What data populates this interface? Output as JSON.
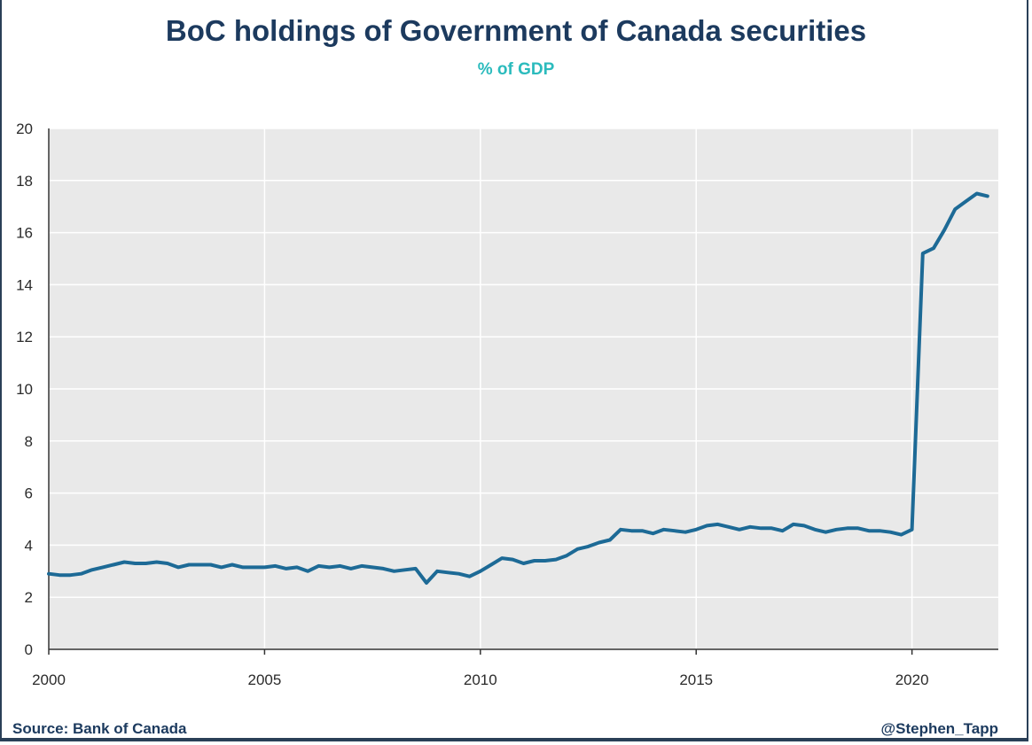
{
  "title": "BoC holdings of Government of Canada securities",
  "subtitle": "% of GDP",
  "source": "Source: Bank of Canada",
  "credit": "@Stephen_Tapp",
  "colors": {
    "line": "#1d6a96",
    "plot_bg": "#e9e9e9",
    "grid": "#ffffff",
    "title": "#1c3a5e",
    "subtitle": "#2bbbbd"
  },
  "chart_data": {
    "type": "line",
    "title": "BoC holdings of Government of Canada securities",
    "subtitle": "% of GDP",
    "xlabel": "",
    "ylabel": "",
    "xlim": [
      2000,
      2022
    ],
    "ylim": [
      0,
      20
    ],
    "x_ticks": [
      "2000",
      "2005",
      "2010",
      "2015",
      "2020"
    ],
    "y_ticks": [
      "0",
      "2",
      "4",
      "6",
      "8",
      "10",
      "12",
      "14",
      "16",
      "18",
      "20"
    ],
    "grid": true,
    "legend": "none",
    "series": [
      {
        "x": [
          2000.0,
          2000.25,
          2000.5,
          2000.75,
          2001.0,
          2001.25,
          2001.5,
          2001.75,
          2002.0,
          2002.25,
          2002.5,
          2002.75,
          2003.0,
          2003.25,
          2003.5,
          2003.75,
          2004.0,
          2004.25,
          2004.5,
          2004.75,
          2005.0,
          2005.25,
          2005.5,
          2005.75,
          2006.0,
          2006.25,
          2006.5,
          2006.75,
          2007.0,
          2007.25,
          2007.5,
          2007.75,
          2008.0,
          2008.25,
          2008.5,
          2008.75,
          2009.0,
          2009.25,
          2009.5,
          2009.75,
          2010.0,
          2010.25,
          2010.5,
          2010.75,
          2011.0,
          2011.25,
          2011.5,
          2011.75,
          2012.0,
          2012.25,
          2012.5,
          2012.75,
          2013.0,
          2013.25,
          2013.5,
          2013.75,
          2014.0,
          2014.25,
          2014.5,
          2014.75,
          2015.0,
          2015.25,
          2015.5,
          2015.75,
          2016.0,
          2016.25,
          2016.5,
          2016.75,
          2017.0,
          2017.25,
          2017.5,
          2017.75,
          2018.0,
          2018.25,
          2018.5,
          2018.75,
          2019.0,
          2019.25,
          2019.5,
          2019.75,
          2020.0,
          2020.25,
          2020.5,
          2020.75,
          2021.0,
          2021.25,
          2021.5,
          2021.75
        ],
        "values": [
          2.9,
          2.85,
          2.85,
          2.9,
          3.05,
          3.15,
          3.25,
          3.35,
          3.3,
          3.3,
          3.35,
          3.3,
          3.15,
          3.25,
          3.25,
          3.25,
          3.15,
          3.25,
          3.15,
          3.15,
          3.15,
          3.2,
          3.1,
          3.15,
          3.0,
          3.2,
          3.15,
          3.2,
          3.1,
          3.2,
          3.15,
          3.1,
          3.0,
          3.05,
          3.1,
          2.55,
          3.0,
          2.95,
          2.9,
          2.8,
          3.0,
          3.25,
          3.5,
          3.45,
          3.3,
          3.4,
          3.4,
          3.45,
          3.6,
          3.85,
          3.95,
          4.1,
          4.2,
          4.6,
          4.55,
          4.55,
          4.45,
          4.6,
          4.55,
          4.5,
          4.6,
          4.75,
          4.8,
          4.7,
          4.6,
          4.7,
          4.65,
          4.65,
          4.55,
          4.8,
          4.75,
          4.6,
          4.5,
          4.6,
          4.65,
          4.65,
          4.55,
          4.55,
          4.5,
          4.4,
          4.6,
          15.2,
          15.4,
          16.1,
          16.9,
          17.2,
          17.5,
          17.4
        ]
      }
    ]
  }
}
